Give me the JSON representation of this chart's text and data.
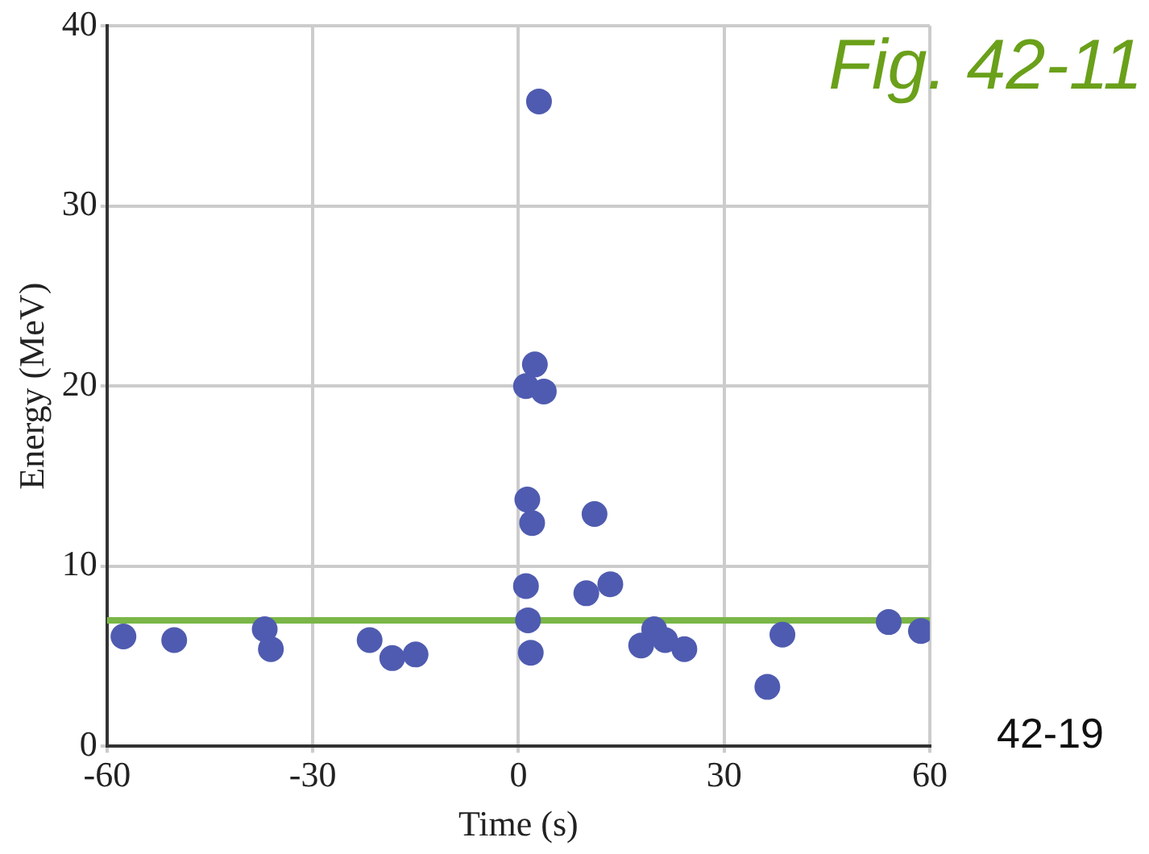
{
  "chart_data": {
    "type": "scatter",
    "xlabel": "Time (s)",
    "ylabel": "Energy (MeV)",
    "annotations": [
      "Fig. 42-11",
      "42-19"
    ],
    "xlim": [
      -60,
      60
    ],
    "xticks": [
      -60,
      -30,
      0,
      30,
      60
    ],
    "ylim": [
      0,
      40
    ],
    "yticks": [
      0,
      10,
      20,
      30,
      40
    ],
    "grid": true,
    "legend": false,
    "marker": "circle",
    "ref_lines": [
      {
        "axis": "y",
        "value": 7,
        "label": null,
        "color": "#7ab648",
        "line_style": "solid"
      }
    ],
    "series": [
      {
        "color": "#4f5bb0",
        "x": [
          -57.6,
          -50.2,
          -37,
          -36.1,
          -21.7,
          -18.4,
          -15,
          3,
          2.4,
          1.1,
          3.7,
          1.3,
          2,
          11.1,
          1.1,
          1.4,
          1.8,
          9.9,
          13.4,
          17.9,
          19.8,
          21.4,
          24.2,
          38.5,
          36.3,
          54,
          58.7
        ],
        "values": [
          6.1,
          5.9,
          6.5,
          5.4,
          5.9,
          4.9,
          5.1,
          35.8,
          21.2,
          20.0,
          19.7,
          13.7,
          12.4,
          12.9,
          8.9,
          7.0,
          5.2,
          8.5,
          9.0,
          5.6,
          6.5,
          5.9,
          5.4,
          6.2,
          3.3,
          6.9,
          6.4
        ]
      }
    ]
  }
}
